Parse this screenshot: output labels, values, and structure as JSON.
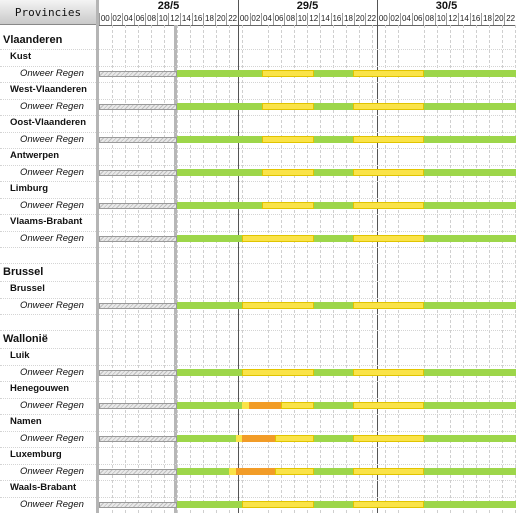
{
  "header": {
    "title": "Provincies",
    "days": [
      "28/5",
      "29/5",
      "30/5"
    ],
    "hours": [
      "00",
      "02",
      "04",
      "06",
      "08",
      "10",
      "12",
      "14",
      "16",
      "18",
      "20",
      "22"
    ]
  },
  "colors": {
    "green": "#9dd64a",
    "yellow": "#fae348",
    "orange": "#f29c27",
    "pale": "#f7e07a"
  },
  "rows": [
    {
      "type": "region",
      "label": "Vlaanderen"
    },
    {
      "type": "province",
      "label": "Kust"
    },
    {
      "type": "warning",
      "label": "Onweer Regen",
      "segments": [
        {
          "from": 12,
          "to": 25,
          "level": "green"
        },
        {
          "from": 25,
          "to": 33,
          "level": "yellow"
        },
        {
          "from": 33,
          "to": 39,
          "level": "green"
        },
        {
          "from": 39,
          "to": 50,
          "level": "yellow"
        },
        {
          "from": 50,
          "to": 72,
          "level": "green"
        }
      ]
    },
    {
      "type": "province",
      "label": "West-Vlaanderen"
    },
    {
      "type": "warning",
      "label": "Onweer Regen",
      "segments": [
        {
          "from": 12,
          "to": 25,
          "level": "green"
        },
        {
          "from": 25,
          "to": 33,
          "level": "yellow"
        },
        {
          "from": 33,
          "to": 39,
          "level": "green"
        },
        {
          "from": 39,
          "to": 50,
          "level": "yellow"
        },
        {
          "from": 50,
          "to": 72,
          "level": "green"
        }
      ]
    },
    {
      "type": "province",
      "label": "Oost-Vlaanderen"
    },
    {
      "type": "warning",
      "label": "Onweer Regen",
      "segments": [
        {
          "from": 12,
          "to": 25,
          "level": "green"
        },
        {
          "from": 25,
          "to": 33,
          "level": "yellow"
        },
        {
          "from": 33,
          "to": 39,
          "level": "green"
        },
        {
          "from": 39,
          "to": 50,
          "level": "yellow"
        },
        {
          "from": 50,
          "to": 72,
          "level": "green"
        }
      ]
    },
    {
      "type": "province",
      "label": "Antwerpen"
    },
    {
      "type": "warning",
      "label": "Onweer Regen",
      "segments": [
        {
          "from": 12,
          "to": 25,
          "level": "green"
        },
        {
          "from": 25,
          "to": 33,
          "level": "yellow"
        },
        {
          "from": 33,
          "to": 39,
          "level": "green"
        },
        {
          "from": 39,
          "to": 50,
          "level": "yellow"
        },
        {
          "from": 50,
          "to": 72,
          "level": "green"
        }
      ]
    },
    {
      "type": "province",
      "label": "Limburg"
    },
    {
      "type": "warning",
      "label": "Onweer Regen",
      "segments": [
        {
          "from": 12,
          "to": 25,
          "level": "green"
        },
        {
          "from": 25,
          "to": 33,
          "level": "yellow"
        },
        {
          "from": 33,
          "to": 39,
          "level": "green"
        },
        {
          "from": 39,
          "to": 50,
          "level": "yellow"
        },
        {
          "from": 50,
          "to": 72,
          "level": "green"
        }
      ]
    },
    {
      "type": "province",
      "label": "Vlaams-Brabant"
    },
    {
      "type": "warning",
      "label": "Onweer Regen",
      "segments": [
        {
          "from": 12,
          "to": 22,
          "level": "green"
        },
        {
          "from": 22,
          "to": 33,
          "level": "yellow"
        },
        {
          "from": 33,
          "to": 39,
          "level": "green"
        },
        {
          "from": 39,
          "to": 50,
          "level": "yellow"
        },
        {
          "from": 50,
          "to": 72,
          "level": "green"
        }
      ]
    },
    {
      "type": "blank"
    },
    {
      "type": "region",
      "label": "Brussel"
    },
    {
      "type": "province",
      "label": "Brussel"
    },
    {
      "type": "warning",
      "label": "Onweer Regen",
      "segments": [
        {
          "from": 12,
          "to": 22,
          "level": "green"
        },
        {
          "from": 22,
          "to": 33,
          "level": "yellow"
        },
        {
          "from": 33,
          "to": 39,
          "level": "green"
        },
        {
          "from": 39,
          "to": 50,
          "level": "yellow"
        },
        {
          "from": 50,
          "to": 72,
          "level": "green"
        }
      ]
    },
    {
      "type": "blank"
    },
    {
      "type": "region",
      "label": "Wallonië"
    },
    {
      "type": "province",
      "label": "Luik"
    },
    {
      "type": "warning",
      "label": "Onweer Regen",
      "segments": [
        {
          "from": 12,
          "to": 22,
          "level": "green"
        },
        {
          "from": 22,
          "to": 33,
          "level": "yellow"
        },
        {
          "from": 33,
          "to": 39,
          "level": "green"
        },
        {
          "from": 39,
          "to": 50,
          "level": "yellow"
        },
        {
          "from": 50,
          "to": 72,
          "level": "green"
        }
      ]
    },
    {
      "type": "province",
      "label": "Henegouwen"
    },
    {
      "type": "warning",
      "label": "Onweer Regen",
      "segments": [
        {
          "from": 12,
          "to": 22,
          "level": "green"
        },
        {
          "from": 22,
          "to": 23,
          "level": "yellow"
        },
        {
          "from": 23,
          "to": 28,
          "level": "orange"
        },
        {
          "from": 28,
          "to": 33,
          "level": "yellow"
        },
        {
          "from": 33,
          "to": 39,
          "level": "green"
        },
        {
          "from": 39,
          "to": 50,
          "level": "yellow"
        },
        {
          "from": 50,
          "to": 72,
          "level": "green"
        }
      ]
    },
    {
      "type": "province",
      "label": "Namen"
    },
    {
      "type": "warning",
      "label": "Onweer Regen",
      "segments": [
        {
          "from": 12,
          "to": 21,
          "level": "green"
        },
        {
          "from": 21,
          "to": 22,
          "level": "yellow"
        },
        {
          "from": 22,
          "to": 27,
          "level": "orange"
        },
        {
          "from": 27,
          "to": 33,
          "level": "yellow"
        },
        {
          "from": 33,
          "to": 39,
          "level": "green"
        },
        {
          "from": 39,
          "to": 50,
          "level": "yellow"
        },
        {
          "from": 50,
          "to": 72,
          "level": "green"
        }
      ]
    },
    {
      "type": "province",
      "label": "Luxemburg"
    },
    {
      "type": "warning",
      "label": "Onweer Regen",
      "segments": [
        {
          "from": 12,
          "to": 20,
          "level": "green"
        },
        {
          "from": 20,
          "to": 21,
          "level": "yellow"
        },
        {
          "from": 21,
          "to": 27,
          "level": "orange"
        },
        {
          "from": 27,
          "to": 33,
          "level": "yellow"
        },
        {
          "from": 33,
          "to": 39,
          "level": "green"
        },
        {
          "from": 39,
          "to": 50,
          "level": "yellow"
        },
        {
          "from": 50,
          "to": 72,
          "level": "green"
        }
      ]
    },
    {
      "type": "province",
      "label": "Waals-Brabant"
    },
    {
      "type": "warning",
      "label": "Onweer Regen",
      "segments": [
        {
          "from": 12,
          "to": 22,
          "level": "green"
        },
        {
          "from": 22,
          "to": 33,
          "level": "yellow"
        },
        {
          "from": 33,
          "to": 39,
          "level": "green"
        },
        {
          "from": 39,
          "to": 50,
          "level": "yellow"
        },
        {
          "from": 50,
          "to": 72,
          "level": "green"
        }
      ]
    }
  ]
}
